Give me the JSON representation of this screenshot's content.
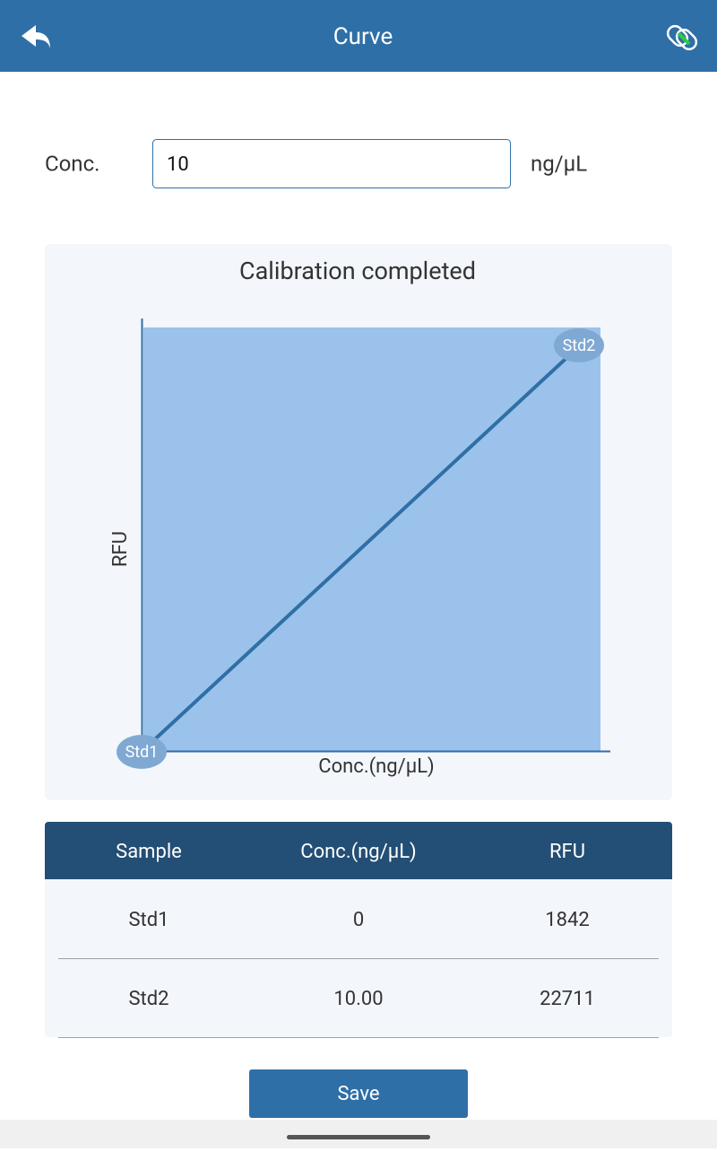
{
  "header": {
    "title": "Curve"
  },
  "form": {
    "label": "Conc.",
    "value": "10",
    "unit": "ng/μL"
  },
  "chart": {
    "title": "Calibration completed",
    "x_label": "Conc.(ng/μL)",
    "y_label": "RFU",
    "points": [
      {
        "label": "Std1"
      },
      {
        "label": "Std2"
      }
    ]
  },
  "table": {
    "columns": [
      "Sample",
      "Conc.(ng/μL)",
      "RFU"
    ],
    "rows": [
      [
        "Std1",
        "0",
        "1842"
      ],
      [
        "Std2",
        "10.00",
        "22711"
      ]
    ]
  },
  "button": {
    "label": "Save"
  }
}
